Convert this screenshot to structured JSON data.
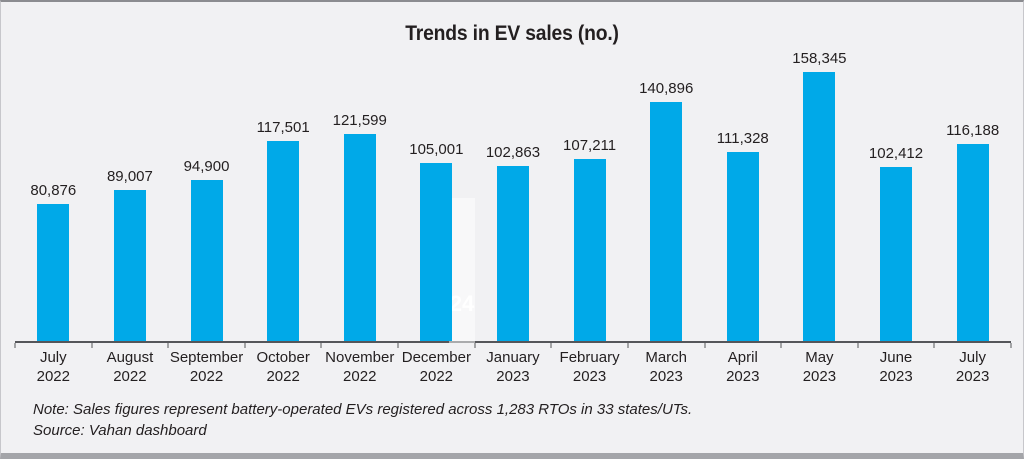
{
  "title": "Trends in EV sales (no.)",
  "watermark": "24",
  "footnotes": {
    "note": "Note: Sales figures represent battery-operated EVs registered across 1,283 RTOs in 33 states/UTs.",
    "source": "Source: Vahan dashboard"
  },
  "colors": {
    "background": "#f1f1f3",
    "bar": "#00a9e8",
    "axis": "#55565a",
    "text": "#231f20",
    "watermark_text": "#ffffff"
  },
  "chart_data": {
    "type": "bar",
    "title": "Trends in EV sales (no.)",
    "categories": [
      "July 2022",
      "August 2022",
      "September 2022",
      "October 2022",
      "November 2022",
      "December 2022",
      "January 2023",
      "February 2023",
      "March 2023",
      "April 2023",
      "May 2023",
      "June 2023",
      "July 2023"
    ],
    "values": [
      80876,
      89007,
      94900,
      117501,
      121599,
      105001,
      102863,
      107211,
      140896,
      111328,
      158345,
      102412,
      116188
    ],
    "value_labels": [
      "80,876",
      "89,007",
      "94,900",
      "117,501",
      "121,599",
      "105,001",
      "102,863",
      "107,211",
      "140,896",
      "111,328",
      "158,345",
      "102,412",
      "116,188"
    ],
    "xlabel": "",
    "ylabel": "",
    "ylim": [
      0,
      158345
    ],
    "grid": false,
    "legend": false,
    "data_labels": true,
    "bar_color": "#00a9e8"
  }
}
